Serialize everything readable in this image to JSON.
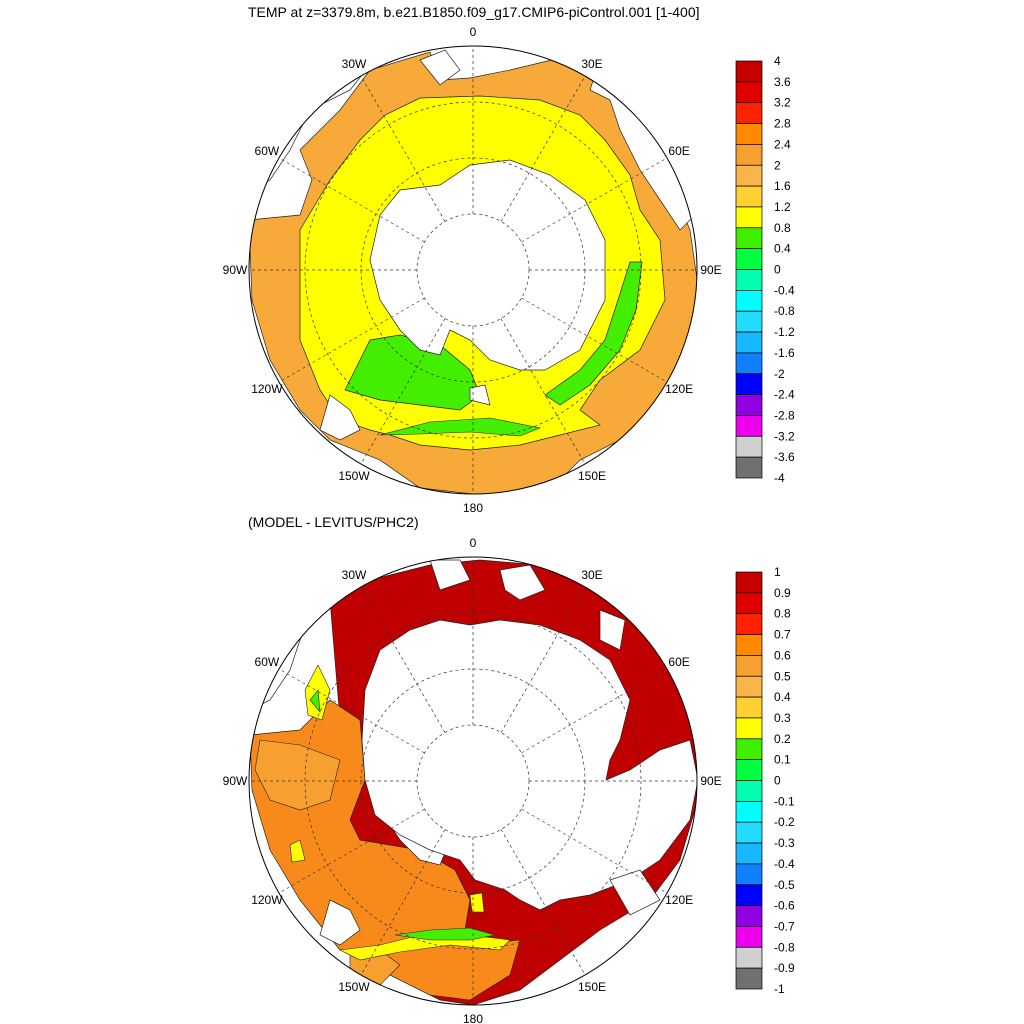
{
  "panels": [
    {
      "title": "TEMP at z=3379.8m, b.e21.B1850.f09_g17.CMIP6-piControl.001 [1-400]",
      "lon_labels": [
        "0",
        "30E",
        "60E",
        "90E",
        "120E",
        "150E",
        "180",
        "150W",
        "120W",
        "90W",
        "60W",
        "30W"
      ],
      "colorbar_labels": [
        "4",
        "3.6",
        "3.2",
        "2.8",
        "2.4",
        "2",
        "1.6",
        "1.2",
        "0.8",
        "0.4",
        "0",
        "-0.4",
        "-0.8",
        "-1.2",
        "-1.6",
        "-2",
        "-2.4",
        "-2.8",
        "-3.2",
        "-3.6",
        "-4"
      ]
    },
    {
      "title": "(MODEL - LEVITUS/PHC2)",
      "lon_labels": [
        "0",
        "30E",
        "60E",
        "90E",
        "120E",
        "150E",
        "180",
        "150W",
        "120W",
        "90W",
        "60W",
        "30W"
      ],
      "colorbar_labels": [
        "1",
        "0.9",
        "0.8",
        "0.7",
        "0.6",
        "0.5",
        "0.4",
        "0.3",
        "0.2",
        "0.1",
        "0",
        "-0.1",
        "-0.2",
        "-0.3",
        "-0.4",
        "-0.5",
        "-0.6",
        "-0.7",
        "-0.8",
        "-0.9",
        "-1"
      ]
    }
  ],
  "colorbar_colors": [
    "#c40000",
    "#e00000",
    "#ff2200",
    "#ff8a00",
    "#f7a030",
    "#f9b54a",
    "#ffd030",
    "#ffff00",
    "#40ee00",
    "#00ff40",
    "#00ffb0",
    "#00ffff",
    "#22ddff",
    "#18b8ff",
    "#1080ff",
    "#0000ff",
    "#9000e0",
    "#ee00ee",
    "#d0d0d0",
    "#707070"
  ],
  "map_colors": {
    "land": "#ffffff",
    "top": {
      "orange": "#f7a93a",
      "yellow": "#ffff00",
      "green": "#44ee00",
      "lightgreen": "#55ff55"
    },
    "bottom": {
      "red": "#c00000",
      "orange": "#f78a1a",
      "lightorange": "#f7a030",
      "yellow": "#ffff00",
      "green": "#44ee00"
    }
  }
}
